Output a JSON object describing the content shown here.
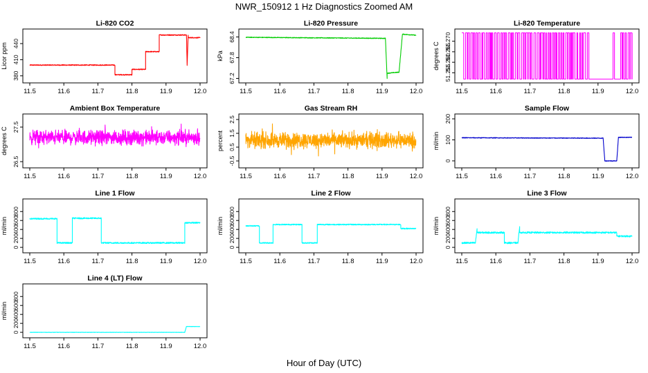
{
  "figure": {
    "title": "NWR_150912  1 Hz Diagnostics Zoomed AM",
    "xlabel": "Hour of Day (UTC)"
  },
  "chart_data": [
    {
      "type": "line",
      "title": "Li-820 CO2",
      "ylabel": "Licor ppm",
      "color": "#ff0000",
      "xlim": [
        11.5,
        12.0
      ],
      "ylim": [
        372,
        462
      ],
      "x_ticks": [
        "11.5",
        "11.6",
        "11.7",
        "11.8",
        "11.9",
        "12.0"
      ],
      "y_ticks": [
        "380",
        "410",
        "440"
      ],
      "y_tick_values": [
        380,
        410,
        440
      ],
      "noise": 0.8,
      "segments": [
        {
          "x": [
            11.5,
            11.75
          ],
          "y": [
            400,
            400
          ]
        },
        {
          "x": [
            11.75,
            11.8
          ],
          "y": [
            382,
            382
          ]
        },
        {
          "x": [
            11.8,
            11.84
          ],
          "y": [
            392,
            392
          ]
        },
        {
          "x": [
            11.84,
            11.88
          ],
          "y": [
            425,
            425
          ]
        },
        {
          "x": [
            11.88,
            11.96
          ],
          "y": [
            456,
            456
          ]
        },
        {
          "x": [
            11.96,
            11.962
          ],
          "y": [
            456,
            400
          ]
        },
        {
          "x": [
            11.962,
            11.965
          ],
          "y": [
            400,
            456
          ]
        },
        {
          "x": [
            11.965,
            12.0
          ],
          "y": [
            451,
            451
          ]
        }
      ]
    },
    {
      "type": "line",
      "title": "Li-820 Pressure",
      "ylabel": "kPa",
      "color": "#00cc00",
      "xlim": [
        11.5,
        12.0
      ],
      "ylim": [
        67.15,
        68.55
      ],
      "x_ticks": [
        "11.5",
        "11.6",
        "11.7",
        "11.8",
        "11.9",
        "12.0"
      ],
      "y_ticks": [
        "67.2",
        "67.8",
        "68.4"
      ],
      "y_tick_values": [
        67.2,
        67.8,
        68.4
      ],
      "noise": 0.01,
      "segments": [
        {
          "x": [
            11.5,
            11.91
          ],
          "y": [
            68.39,
            68.36
          ]
        },
        {
          "x": [
            11.91,
            11.915
          ],
          "y": [
            68.36,
            67.2
          ]
        },
        {
          "x": [
            11.915,
            11.95
          ],
          "y": [
            67.35,
            67.38
          ]
        },
        {
          "x": [
            11.95,
            11.96
          ],
          "y": [
            67.38,
            68.48
          ]
        },
        {
          "x": [
            11.96,
            12.0
          ],
          "y": [
            68.48,
            68.45
          ]
        }
      ]
    },
    {
      "type": "line",
      "title": "Li-820 Temperature",
      "ylabel": "degrees C",
      "color": "#ff00ff",
      "xlim": [
        11.5,
        12.0
      ],
      "ylim": [
        51.2515,
        51.2745
      ],
      "x_ticks": [
        "11.5",
        "11.6",
        "11.7",
        "11.8",
        "11.9",
        "12.0"
      ],
      "y_ticks": [
        "51.255",
        "51.260",
        "51.265",
        "51.270"
      ],
      "y_tick_values": [
        51.255,
        51.26,
        51.265,
        51.27
      ],
      "pattern": "toggle",
      "levels": [
        51.252,
        51.274
      ],
      "gap": [
        11.87,
        11.96
      ]
    },
    {
      "type": "line",
      "title": "Ambient Box Temperature",
      "ylabel": "degrees C",
      "color": "#ff00ff",
      "xlim": [
        11.5,
        12.0
      ],
      "ylim": [
        26.4,
        27.8
      ],
      "x_ticks": [
        "11.5",
        "11.6",
        "11.7",
        "11.8",
        "11.9",
        "12.0"
      ],
      "y_ticks": [
        "26.5",
        "27.5"
      ],
      "y_tick_values": [
        26.5,
        27.5
      ],
      "pattern": "noise",
      "center": 27.2,
      "amplitude": 0.3
    },
    {
      "type": "line",
      "title": "Gas Stream RH",
      "ylabel": "percent",
      "color": "#ffa500",
      "xlim": [
        11.5,
        12.0
      ],
      "ylim": [
        -0.8,
        2.7
      ],
      "x_ticks": [
        "11.5",
        "11.6",
        "11.7",
        "11.8",
        "11.9",
        "12.0"
      ],
      "y_ticks": [
        "-0.5",
        "0.5",
        "1.5",
        "2.5"
      ],
      "y_tick_values": [
        -0.5,
        0.5,
        1.5,
        2.5
      ],
      "pattern": "noise",
      "center": 1.0,
      "amplitude": 0.8
    },
    {
      "type": "line",
      "title": "Sample Flow",
      "ylabel": "ml/min",
      "color": "#0000cc",
      "xlim": [
        11.5,
        12.0
      ],
      "ylim": [
        -20,
        210
      ],
      "x_ticks": [
        "11.5",
        "11.6",
        "11.7",
        "11.8",
        "11.9",
        "12.0"
      ],
      "y_ticks": [
        "0",
        "100",
        "200"
      ],
      "y_tick_values": [
        0,
        100,
        200
      ],
      "noise": 1.5,
      "segments": [
        {
          "x": [
            11.5,
            11.915
          ],
          "y": [
            110,
            108
          ]
        },
        {
          "x": [
            11.915,
            11.92
          ],
          "y": [
            108,
            0
          ]
        },
        {
          "x": [
            11.92,
            11.955
          ],
          "y": [
            0,
            0
          ]
        },
        {
          "x": [
            11.955,
            11.96
          ],
          "y": [
            0,
            112
          ]
        },
        {
          "x": [
            11.96,
            12.0
          ],
          "y": [
            112,
            112
          ]
        }
      ]
    },
    {
      "type": "line",
      "title": "Line 1 Flow",
      "ylabel": "ml/min",
      "color": "#00ffff",
      "xlim": [
        11.5,
        12.0
      ],
      "ylim": [
        -60,
        1020
      ],
      "x_ticks": [
        "11.5",
        "11.6",
        "11.7",
        "11.8",
        "11.9",
        "12.0"
      ],
      "y_ticks": [
        "0",
        "200",
        "400",
        "600",
        "800"
      ],
      "y_tick_values": [
        0,
        200,
        400,
        600,
        800
      ],
      "noise": 15,
      "segments": [
        {
          "x": [
            11.5,
            11.58
          ],
          "y": [
            640,
            640
          ]
        },
        {
          "x": [
            11.58,
            11.625
          ],
          "y": [
            100,
            100
          ]
        },
        {
          "x": [
            11.625,
            11.71
          ],
          "y": [
            650,
            650
          ]
        },
        {
          "x": [
            11.71,
            11.955
          ],
          "y": [
            100,
            100
          ]
        },
        {
          "x": [
            11.955,
            12.0
          ],
          "y": [
            550,
            550
          ]
        }
      ]
    },
    {
      "type": "line",
      "title": "Line 2 Flow",
      "ylabel": "ml/min",
      "color": "#00ffff",
      "xlim": [
        11.5,
        12.0
      ],
      "ylim": [
        -60,
        1020
      ],
      "x_ticks": [
        "11.5",
        "11.6",
        "11.7",
        "11.8",
        "11.9",
        "12.0"
      ],
      "y_ticks": [
        "0",
        "200",
        "400",
        "600",
        "800"
      ],
      "y_tick_values": [
        0,
        200,
        400,
        600,
        800
      ],
      "noise": 12,
      "segments": [
        {
          "x": [
            11.5,
            11.54
          ],
          "y": [
            480,
            480
          ]
        },
        {
          "x": [
            11.54,
            11.58
          ],
          "y": [
            100,
            100
          ]
        },
        {
          "x": [
            11.58,
            11.665
          ],
          "y": [
            510,
            510
          ]
        },
        {
          "x": [
            11.665,
            11.71
          ],
          "y": [
            100,
            100
          ]
        },
        {
          "x": [
            11.71,
            11.955
          ],
          "y": [
            510,
            510
          ]
        },
        {
          "x": [
            11.955,
            12.0
          ],
          "y": [
            420,
            420
          ]
        }
      ]
    },
    {
      "type": "line",
      "title": "Line 3 Flow",
      "ylabel": "ml/min",
      "color": "#00ffff",
      "xlim": [
        11.5,
        12.0
      ],
      "ylim": [
        -60,
        1020
      ],
      "x_ticks": [
        "11.5",
        "11.6",
        "11.7",
        "11.8",
        "11.9",
        "12.0"
      ],
      "y_ticks": [
        "0",
        "200",
        "400",
        "600",
        "800"
      ],
      "y_tick_values": [
        0,
        200,
        400,
        600,
        800
      ],
      "noise": 18,
      "segments": [
        {
          "x": [
            11.5,
            11.54
          ],
          "y": [
            100,
            100
          ]
        },
        {
          "x": [
            11.54,
            11.545
          ],
          "y": [
            100,
            420
          ]
        },
        {
          "x": [
            11.545,
            11.625
          ],
          "y": [
            330,
            330
          ]
        },
        {
          "x": [
            11.625,
            11.665
          ],
          "y": [
            100,
            100
          ]
        },
        {
          "x": [
            11.665,
            11.67
          ],
          "y": [
            100,
            480
          ]
        },
        {
          "x": [
            11.67,
            11.955
          ],
          "y": [
            330,
            330
          ]
        },
        {
          "x": [
            11.955,
            12.0
          ],
          "y": [
            250,
            250
          ]
        }
      ]
    },
    {
      "type": "line",
      "title": "Line 4 (LT) Flow",
      "ylabel": "ml/min",
      "color": "#00ffff",
      "xlim": [
        11.5,
        12.0
      ],
      "ylim": [
        -60,
        1020
      ],
      "x_ticks": [
        "11.5",
        "11.6",
        "11.7",
        "11.8",
        "11.9",
        "12.0"
      ],
      "y_ticks": [
        "0",
        "200",
        "400",
        "600",
        "800"
      ],
      "y_tick_values": [
        0,
        200,
        400,
        600,
        800
      ],
      "noise": 3,
      "segments": [
        {
          "x": [
            11.5,
            11.955
          ],
          "y": [
            0,
            0
          ]
        },
        {
          "x": [
            11.955,
            11.96
          ],
          "y": [
            0,
            130
          ]
        },
        {
          "x": [
            11.96,
            12.0
          ],
          "y": [
            130,
            130
          ]
        }
      ]
    }
  ]
}
